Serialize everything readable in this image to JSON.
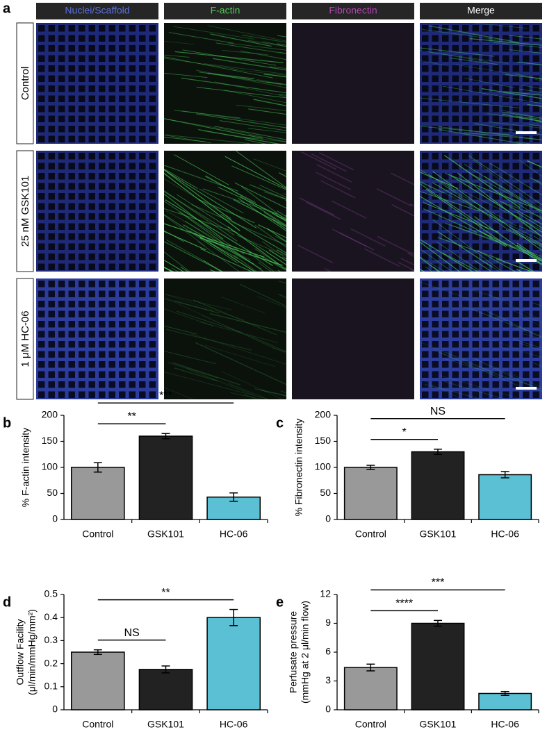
{
  "figure": {
    "panel_label": "a",
    "columns": [
      {
        "label": "Nuclei/Scaffold",
        "color": "#5a72e0"
      },
      {
        "label": "F-actin",
        "color": "#52c552"
      },
      {
        "label": "Fibronectin",
        "color": "#b247b2"
      },
      {
        "label": "Merge",
        "color": "#ffffff"
      }
    ],
    "rows": [
      "Control",
      "25 nM GSK101",
      "1 μM HC-06"
    ]
  },
  "chart_data": [
    {
      "type": "bar",
      "panel_label": "b",
      "ylabel": [
        "% F-actin intensity"
      ],
      "categories": [
        "Control",
        "GSK101",
        "HC-06"
      ],
      "values": [
        100,
        160,
        43
      ],
      "errors": [
        9,
        5,
        8
      ],
      "colors": [
        "#999999",
        "#222222",
        "#5bc0d4"
      ],
      "ylim": [
        0,
        200
      ],
      "yticks": [
        0,
        50,
        100,
        150,
        200
      ],
      "significance": [
        {
          "label": "**",
          "between": [
            "Control",
            "GSK101"
          ]
        },
        {
          "label": "***",
          "between": [
            "Control",
            "HC-06"
          ]
        }
      ]
    },
    {
      "type": "bar",
      "panel_label": "c",
      "ylabel": [
        "% Fibronectin intensity"
      ],
      "categories": [
        "Control",
        "GSK101",
        "HC-06"
      ],
      "values": [
        100,
        130,
        86
      ],
      "errors": [
        4,
        5,
        6
      ],
      "colors": [
        "#999999",
        "#222222",
        "#5bc0d4"
      ],
      "ylim": [
        0,
        200
      ],
      "yticks": [
        0,
        50,
        100,
        150,
        200
      ],
      "significance": [
        {
          "label": "*",
          "between": [
            "Control",
            "GSK101"
          ]
        },
        {
          "label": "NS",
          "between": [
            "Control",
            "HC-06"
          ]
        }
      ]
    },
    {
      "type": "bar",
      "panel_label": "d",
      "ylabel": [
        "Outflow Facility",
        "(μl/min/mmHg/mm²)"
      ],
      "categories": [
        "Control",
        "GSK101",
        "HC-06"
      ],
      "values": [
        0.25,
        0.175,
        0.4
      ],
      "errors": [
        0.01,
        0.015,
        0.035
      ],
      "colors": [
        "#999999",
        "#222222",
        "#5bc0d4"
      ],
      "ylim": [
        0,
        0.5
      ],
      "yticks": [
        0,
        0.1,
        0.2,
        0.3,
        0.4,
        0.5
      ],
      "significance": [
        {
          "label": "NS",
          "between": [
            "Control",
            "GSK101"
          ]
        },
        {
          "label": "**",
          "between": [
            "Control",
            "HC-06"
          ]
        }
      ]
    },
    {
      "type": "bar",
      "panel_label": "e",
      "ylabel": [
        "Perfusate pressure",
        "(mmHg at 2 μl/min flow)"
      ],
      "categories": [
        "Control",
        "GSK101",
        "HC-06"
      ],
      "values": [
        4.4,
        9.0,
        1.7
      ],
      "errors": [
        0.35,
        0.3,
        0.2
      ],
      "colors": [
        "#999999",
        "#222222",
        "#5bc0d4"
      ],
      "ylim": [
        0,
        12
      ],
      "yticks": [
        0,
        3,
        6,
        9,
        12
      ],
      "significance": [
        {
          "label": "****",
          "between": [
            "Control",
            "GSK101"
          ]
        },
        {
          "label": "***",
          "between": [
            "Control",
            "HC-06"
          ]
        }
      ]
    }
  ]
}
